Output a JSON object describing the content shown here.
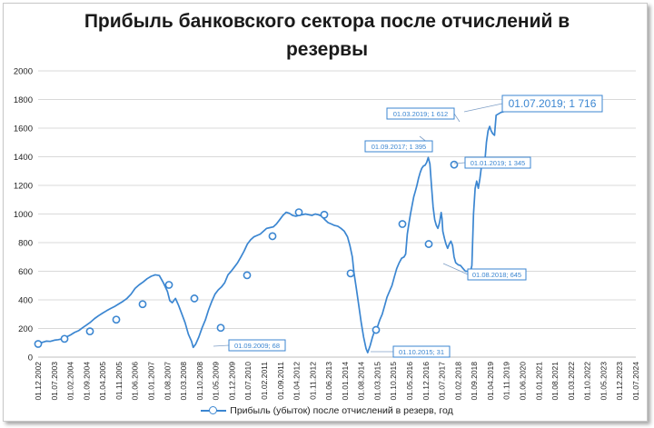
{
  "chart_data": {
    "type": "line",
    "title_lines": [
      "Прибыль банковского сектора после отчислений в",
      "резервы"
    ],
    "ylim": [
      0,
      2000
    ],
    "yticks": [
      "0",
      "200",
      "400",
      "600",
      "800",
      "1000",
      "1200",
      "1400",
      "1600",
      "1800",
      "2000"
    ],
    "xticks": [
      "01.12.2002",
      "01.07.2003",
      "01.02.2004",
      "01.09.2004",
      "01.04.2005",
      "01.11.2005",
      "01.06.2006",
      "01.01.2007",
      "01.08.2007",
      "01.03.2008",
      "01.10.2008",
      "01.05.2009",
      "01.12.2009",
      "01.07.2010",
      "01.02.2011",
      "01.09.2011",
      "01.04.2012",
      "01.11.2012",
      "01.06.2013",
      "01.01.2014",
      "01.08.2014",
      "01.03.2015",
      "01.10.2015",
      "01.05.2016",
      "01.12.2016",
      "01.07.2017",
      "01.02.2018",
      "01.09.2018",
      "01.04.2019",
      "01.11.2019",
      "01.06.2020",
      "01.01.2021",
      "01.08.2021",
      "01.03.2022",
      "01.10.2022",
      "01.05.2023",
      "01.12.2023",
      "01.07.2024"
    ],
    "series": [
      {
        "name": "Прибыль (убыток) после отчислений в резерв,  год",
        "color": "#3b86d1",
        "points": [
          [
            0,
            92
          ],
          [
            0.5,
            103
          ],
          [
            1,
            112
          ],
          [
            1.5,
            110
          ],
          [
            2,
            118
          ],
          [
            2.5,
            122
          ],
          [
            3,
            128
          ],
          [
            3.5,
            140
          ],
          [
            4,
            155
          ],
          [
            4.5,
            172
          ],
          [
            5,
            185
          ],
          [
            5.5,
            205
          ],
          [
            6,
            225
          ],
          [
            6.5,
            245
          ],
          [
            7,
            270
          ],
          [
            7.5,
            290
          ],
          [
            8,
            308
          ],
          [
            8.5,
            325
          ],
          [
            9,
            340
          ],
          [
            9.5,
            355
          ],
          [
            10,
            372
          ],
          [
            10.5,
            390
          ],
          [
            11,
            410
          ],
          [
            11.5,
            440
          ],
          [
            12,
            480
          ],
          [
            12.5,
            505
          ],
          [
            13,
            525
          ],
          [
            13.5,
            548
          ],
          [
            14,
            565
          ],
          [
            14.5,
            575
          ],
          [
            15,
            570
          ],
          [
            15.5,
            520
          ],
          [
            16,
            460
          ],
          [
            16.3,
            395
          ],
          [
            16.6,
            380
          ],
          [
            17,
            410
          ],
          [
            17.4,
            360
          ],
          [
            17.8,
            300
          ],
          [
            18.2,
            240
          ],
          [
            18.6,
            160
          ],
          [
            19,
            110
          ],
          [
            19.2,
            68
          ],
          [
            19.5,
            90
          ],
          [
            19.9,
            140
          ],
          [
            20.3,
            205
          ],
          [
            20.7,
            260
          ],
          [
            21.1,
            330
          ],
          [
            21.5,
            390
          ],
          [
            21.9,
            440
          ],
          [
            22.3,
            470
          ],
          [
            22.7,
            490
          ],
          [
            23.1,
            520
          ],
          [
            23.5,
            575
          ],
          [
            23.9,
            600
          ],
          [
            24.3,
            630
          ],
          [
            24.7,
            660
          ],
          [
            25.1,
            700
          ],
          [
            25.5,
            740
          ],
          [
            25.9,
            790
          ],
          [
            26.3,
            820
          ],
          [
            26.7,
            840
          ],
          [
            27.1,
            850
          ],
          [
            27.5,
            860
          ],
          [
            27.9,
            880
          ],
          [
            28.3,
            900
          ],
          [
            28.7,
            905
          ],
          [
            29.1,
            910
          ],
          [
            29.5,
            930
          ],
          [
            29.9,
            960
          ],
          [
            30.3,
            990
          ],
          [
            30.7,
            1012
          ],
          [
            31.1,
            1005
          ],
          [
            31.5,
            990
          ],
          [
            31.9,
            985
          ],
          [
            32.3,
            990
          ],
          [
            32.7,
            995
          ],
          [
            33.1,
            1000
          ],
          [
            33.5,
            995
          ],
          [
            33.9,
            990
          ],
          [
            34.3,
            1000
          ],
          [
            34.7,
            995
          ],
          [
            35.1,
            985
          ],
          [
            35.5,
            960
          ],
          [
            35.9,
            940
          ],
          [
            36.3,
            930
          ],
          [
            36.7,
            920
          ],
          [
            37.1,
            915
          ],
          [
            37.5,
            900
          ],
          [
            37.9,
            880
          ],
          [
            38.3,
            840
          ],
          [
            38.6,
            780
          ],
          [
            38.9,
            700
          ],
          [
            39.1,
            590
          ],
          [
            39.4,
            480
          ],
          [
            39.7,
            360
          ],
          [
            40,
            240
          ],
          [
            40.3,
            140
          ],
          [
            40.6,
            60
          ],
          [
            40.8,
            31
          ],
          [
            41.1,
            80
          ],
          [
            41.4,
            140
          ],
          [
            41.7,
            190
          ],
          [
            42,
            210
          ],
          [
            42.3,
            260
          ],
          [
            42.6,
            300
          ],
          [
            42.9,
            360
          ],
          [
            43.2,
            420
          ],
          [
            43.5,
            460
          ],
          [
            43.8,
            500
          ],
          [
            44.1,
            560
          ],
          [
            44.4,
            620
          ],
          [
            44.7,
            660
          ],
          [
            45,
            690
          ],
          [
            45.3,
            700
          ],
          [
            45.5,
            720
          ],
          [
            45.7,
            860
          ],
          [
            45.9,
            930
          ],
          [
            46.1,
            1000
          ],
          [
            46.3,
            1060
          ],
          [
            46.5,
            1120
          ],
          [
            46.7,
            1160
          ],
          [
            46.9,
            1200
          ],
          [
            47.1,
            1250
          ],
          [
            47.3,
            1290
          ],
          [
            47.5,
            1320
          ],
          [
            47.7,
            1335
          ],
          [
            47.9,
            1340
          ],
          [
            48.1,
            1360
          ],
          [
            48.3,
            1395
          ],
          [
            48.5,
            1350
          ],
          [
            48.7,
            1200
          ],
          [
            48.9,
            1050
          ],
          [
            49.1,
            960
          ],
          [
            49.3,
            920
          ],
          [
            49.5,
            900
          ],
          [
            49.7,
            940
          ],
          [
            49.9,
            1010
          ],
          [
            50,
            970
          ],
          [
            50.1,
            880
          ],
          [
            50.3,
            830
          ],
          [
            50.5,
            790
          ],
          [
            50.7,
            760
          ],
          [
            50.9,
            790
          ],
          [
            51.1,
            810
          ],
          [
            51.3,
            780
          ],
          [
            51.5,
            700
          ],
          [
            51.7,
            660
          ],
          [
            52,
            645
          ],
          [
            52.3,
            640
          ],
          [
            52.6,
            620
          ],
          [
            52.9,
            600
          ],
          [
            53.3,
            600
          ],
          [
            53.5,
            590
          ],
          [
            53.7,
            640
          ],
          [
            53.9,
            1000
          ],
          [
            54.1,
            1180
          ],
          [
            54.3,
            1230
          ],
          [
            54.5,
            1180
          ],
          [
            54.7,
            1250
          ],
          [
            54.9,
            1340
          ],
          [
            55.1,
            1345
          ],
          [
            55.3,
            1360
          ],
          [
            55.5,
            1500
          ],
          [
            55.7,
            1580
          ],
          [
            55.9,
            1612
          ],
          [
            56.1,
            1580
          ],
          [
            56.3,
            1560
          ],
          [
            56.5,
            1550
          ],
          [
            56.7,
            1690
          ],
          [
            57,
            1700
          ],
          [
            57.3,
            1710
          ],
          [
            57.7,
            1716
          ]
        ],
        "markers": [
          0,
          4,
          8,
          12,
          16,
          20,
          24,
          28,
          32,
          36,
          40,
          44,
          48,
          52,
          56,
          60,
          64,
          68,
          72,
          76
        ]
      }
    ],
    "marker_points": [
      [
        0,
        92
      ],
      [
        4,
        128
      ],
      [
        8,
        180
      ],
      [
        12,
        262
      ],
      [
        16,
        370
      ],
      [
        20,
        505
      ],
      [
        24,
        410
      ],
      [
        28,
        205
      ],
      [
        32,
        572
      ],
      [
        36,
        845
      ],
      [
        40,
        1012
      ],
      [
        44,
        995
      ],
      [
        48,
        585
      ],
      [
        52,
        190
      ],
      [
        56,
        930
      ],
      [
        60,
        790
      ],
      [
        64,
        1345
      ]
    ],
    "annotations": [
      {
        "label": "01.09.2009; 68",
        "at": [
          19.2,
          68
        ]
      },
      {
        "label": "01.10.2015; 31",
        "at": [
          40.8,
          31
        ]
      },
      {
        "label": "01.09.2017; 1 395",
        "at": [
          48.3,
          1395
        ]
      },
      {
        "label": "01.08.2018; 645",
        "at": [
          52,
          645
        ]
      },
      {
        "label": "01.01.2019; 1 345",
        "at": [
          55.1,
          1345
        ]
      },
      {
        "label": "01.03.2019; 1 612",
        "at": [
          55.9,
          1612
        ]
      },
      {
        "label": "01.07.2019; 1 716",
        "at": [
          57.7,
          1716
        ]
      }
    ],
    "legend": "Прибыль (убыток) после отчислений в резерв,  год"
  }
}
